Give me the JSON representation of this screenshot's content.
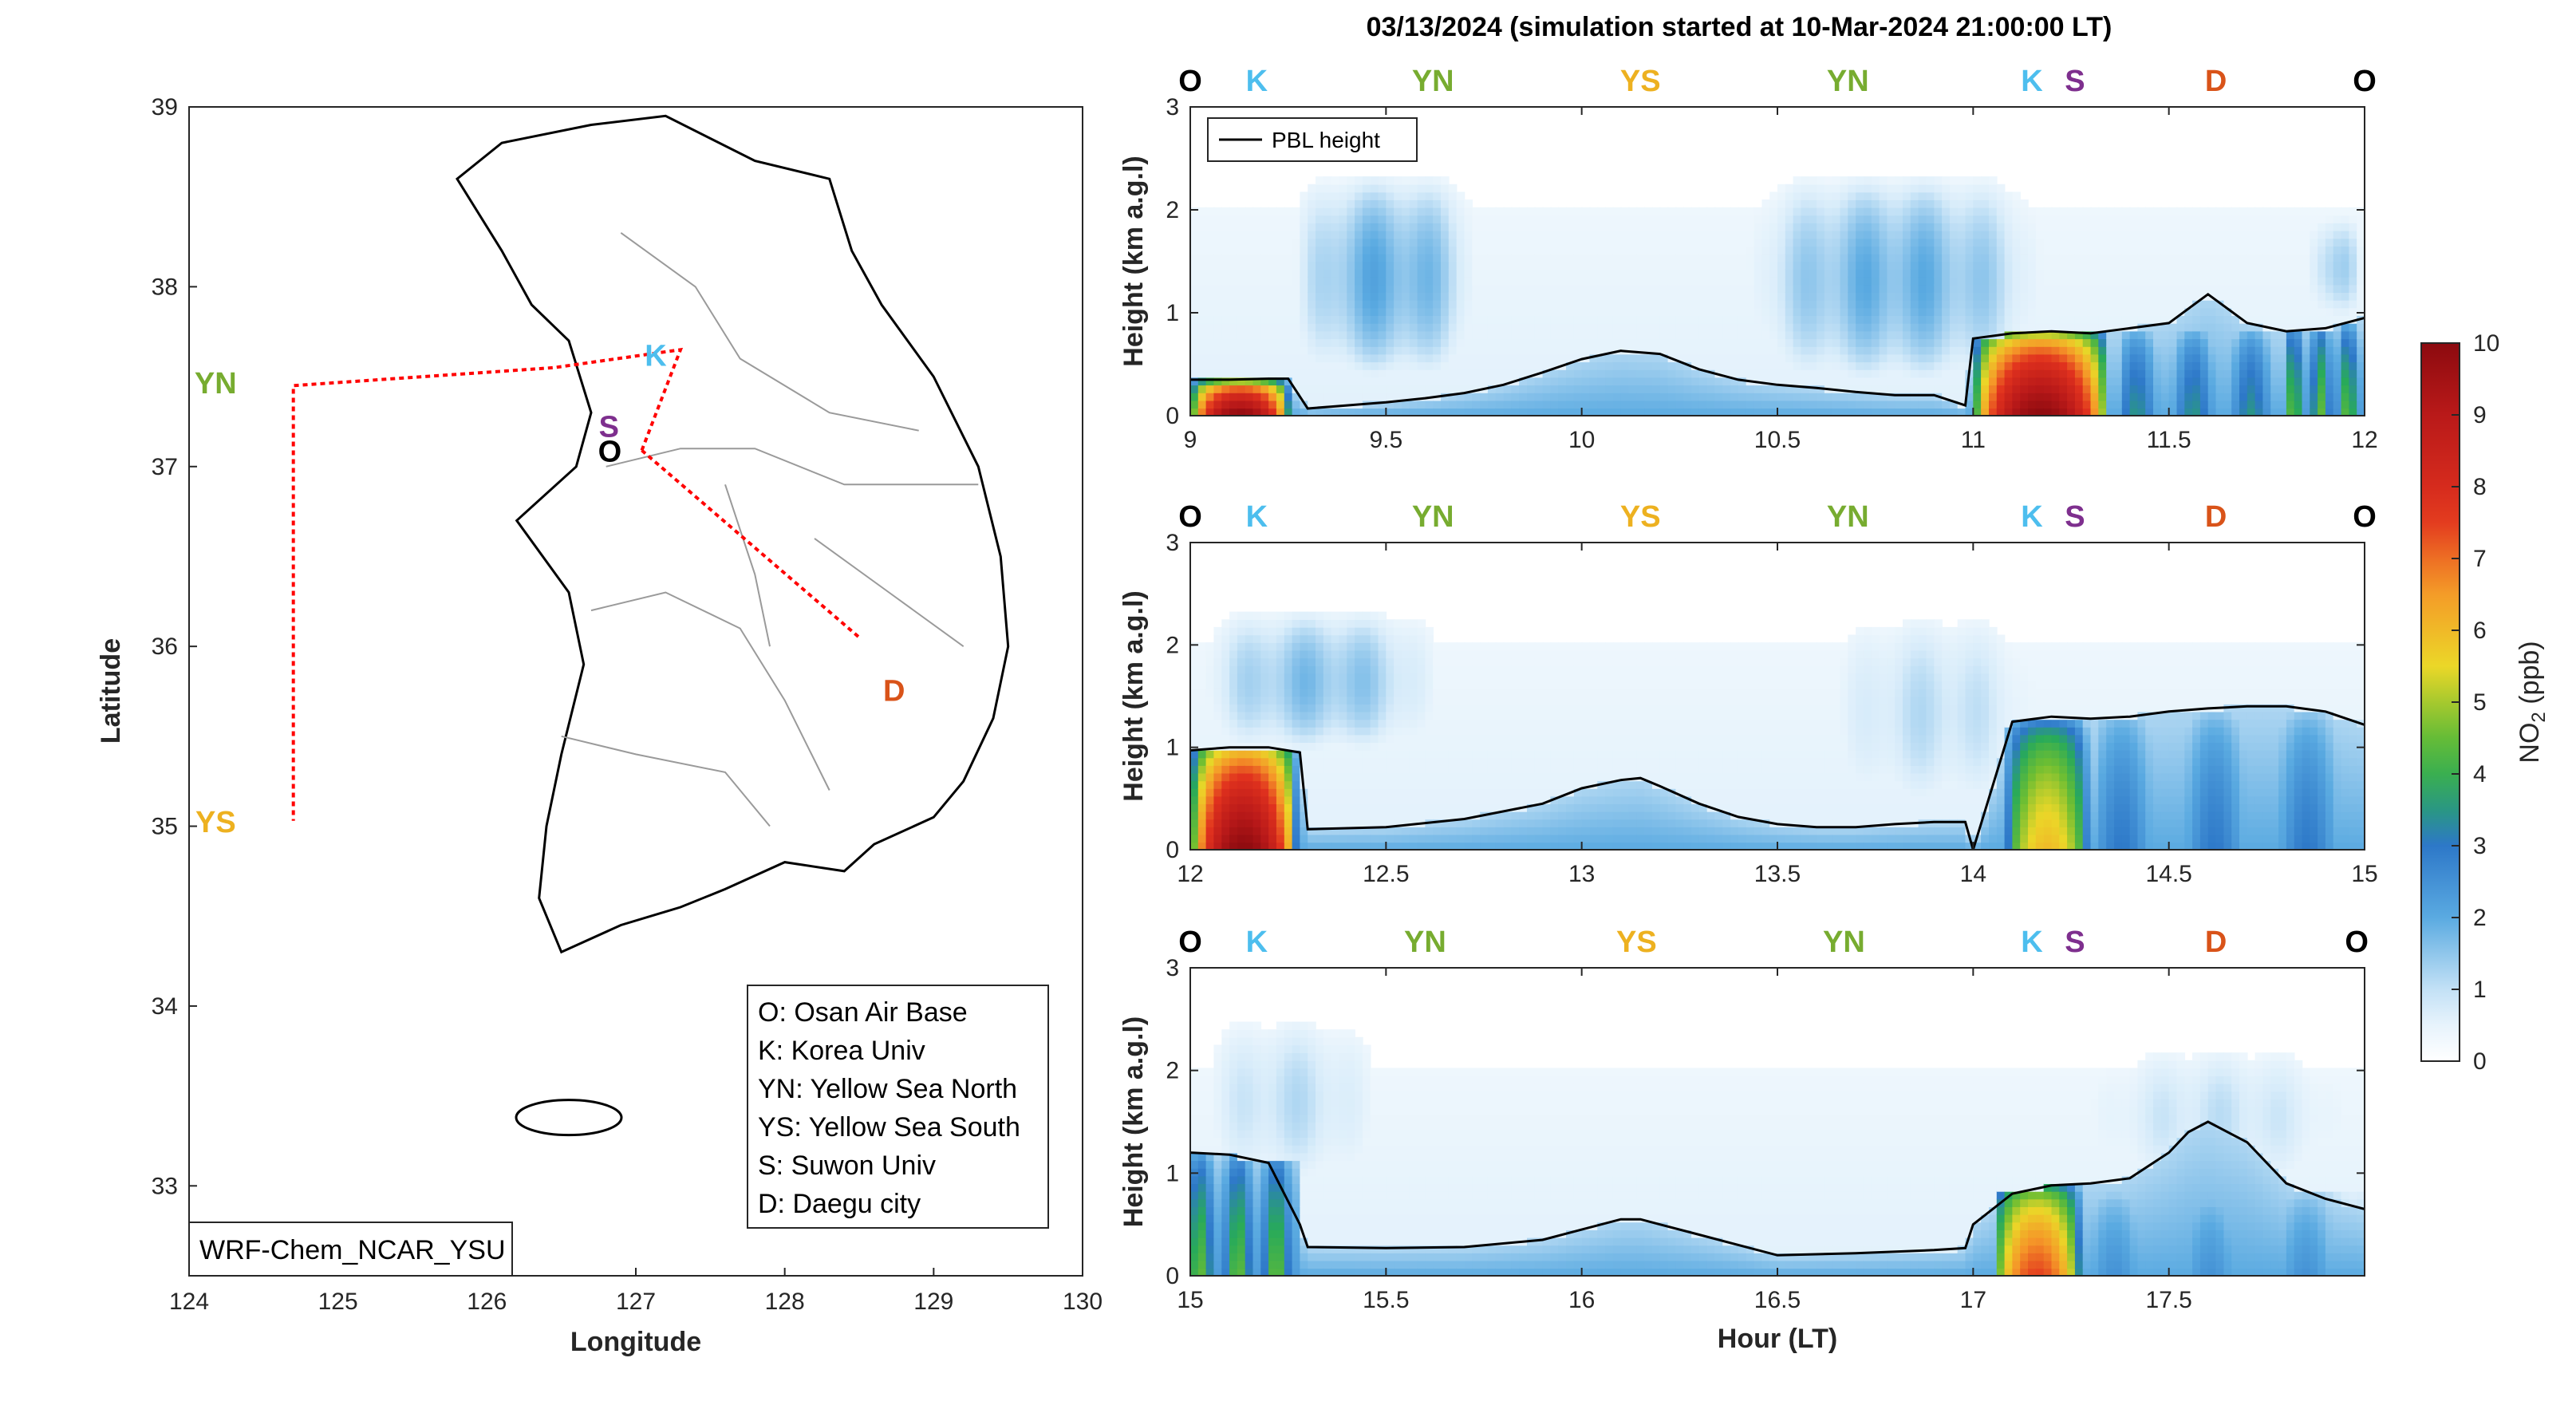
{
  "title": "03/13/2024 (simulation started at 10-Mar-2024 21:00:00 LT)",
  "map": {
    "xlabel": "Longitude",
    "ylabel": "Latitude",
    "xticks": [
      "124",
      "125",
      "126",
      "127",
      "128",
      "129",
      "130"
    ],
    "yticks": [
      "39",
      "38",
      "37",
      "36",
      "35",
      "34",
      "33"
    ],
    "model_label": "WRF-Chem_NCAR_YSU",
    "sites": [
      {
        "code": "K",
        "lon": 127.0,
        "lat": 37.6,
        "color": "#4DBEEE"
      },
      {
        "code": "S",
        "lon": 126.98,
        "lat": 37.28,
        "color": "#7E2F8E"
      },
      {
        "code": "O",
        "lon": 127.04,
        "lat": 37.09,
        "color": "#000000"
      },
      {
        "code": "YN",
        "lon": 124.5,
        "lat": 37.47,
        "color": "#77AC30"
      },
      {
        "code": "YS",
        "lon": 124.5,
        "lat": 35.03,
        "color": "#EDB120"
      },
      {
        "code": "D",
        "lon": 128.6,
        "lat": 35.87,
        "color": "#D95319"
      }
    ],
    "legend": [
      "O: Osan Air Base",
      "K: Korea Univ",
      "YN: Yellow Sea North",
      "YS: Yellow Sea South",
      "S: Suwon Univ",
      "D: Daegu city"
    ],
    "route_color": "#FF0000"
  },
  "chart_data": [
    {
      "type": "heatmap",
      "ylabel": "Height (km a.g.l)",
      "xlim": [
        9,
        12
      ],
      "ylim": [
        0,
        3
      ],
      "xticks": [
        "9",
        "9.5",
        "10",
        "10.5",
        "11",
        "11.5",
        "12"
      ],
      "yticks": [
        "0",
        "1",
        "2",
        "3"
      ],
      "top_sites": [
        {
          "code": "O",
          "x": 9.0,
          "color": "#000000"
        },
        {
          "code": "K",
          "x": 9.17,
          "color": "#4DBEEE"
        },
        {
          "code": "YN",
          "x": 9.62,
          "color": "#77AC30"
        },
        {
          "code": "YS",
          "x": 10.15,
          "color": "#EDB120"
        },
        {
          "code": "YN",
          "x": 10.68,
          "color": "#77AC30"
        },
        {
          "code": "K",
          "x": 11.15,
          "color": "#4DBEEE"
        },
        {
          "code": "S",
          "x": 11.26,
          "color": "#7E2F8E"
        },
        {
          "code": "D",
          "x": 11.62,
          "color": "#D95319"
        },
        {
          "code": "O",
          "x": 12.0,
          "color": "#000000"
        }
      ],
      "legend": "PBL height",
      "pbl": {
        "x": [
          9.0,
          9.1,
          9.2,
          9.25,
          9.3,
          9.4,
          9.5,
          9.6,
          9.7,
          9.8,
          9.9,
          10.0,
          10.1,
          10.2,
          10.3,
          10.4,
          10.5,
          10.6,
          10.7,
          10.8,
          10.9,
          10.98,
          11.0,
          11.1,
          11.2,
          11.3,
          11.4,
          11.5,
          11.6,
          11.7,
          11.8,
          11.9,
          12.0
        ],
        "y": [
          0.35,
          0.35,
          0.36,
          0.36,
          0.07,
          0.1,
          0.13,
          0.17,
          0.22,
          0.3,
          0.42,
          0.55,
          0.63,
          0.6,
          0.45,
          0.35,
          0.3,
          0.27,
          0.23,
          0.2,
          0.2,
          0.1,
          0.75,
          0.8,
          0.82,
          0.8,
          0.85,
          0.9,
          1.18,
          0.9,
          0.82,
          0.85,
          0.95
        ]
      },
      "hotspots": [
        {
          "x": [
            9.0,
            9.28
          ],
          "ztop": 0.33,
          "peak": 10,
          "profile": "sharp"
        },
        {
          "x": [
            11.0,
            11.38
          ],
          "ztop": 0.78,
          "peak": 10,
          "profile": "sharp"
        },
        {
          "x": [
            11.38,
            11.8
          ],
          "ztop": 0.8,
          "peak": 3.5,
          "profile": "flat"
        },
        {
          "x": [
            11.8,
            12.0
          ],
          "ztop": 0.85,
          "peak": 4.5,
          "profile": "flat"
        }
      ],
      "aloft": [
        {
          "x": [
            9.25,
            9.75
          ],
          "z": [
            0.3,
            2.4
          ],
          "peak": 2.2
        },
        {
          "x": [
            10.4,
            11.2
          ],
          "z": [
            0.25,
            2.4
          ],
          "peak": 2.1
        },
        {
          "x": [
            11.85,
            12.0
          ],
          "z": [
            0.9,
            2.0
          ],
          "peak": 1.6
        }
      ]
    },
    {
      "type": "heatmap",
      "ylabel": "Height (km a.g.l)",
      "xlim": [
        12,
        15
      ],
      "ylim": [
        0,
        3
      ],
      "xticks": [
        "12",
        "12.5",
        "13",
        "13.5",
        "14",
        "14.5",
        "15"
      ],
      "yticks": [
        "0",
        "1",
        "2",
        "3"
      ],
      "top_sites": [
        {
          "code": "O",
          "x": 12.0,
          "color": "#000000"
        },
        {
          "code": "K",
          "x": 12.17,
          "color": "#4DBEEE"
        },
        {
          "code": "YN",
          "x": 12.62,
          "color": "#77AC30"
        },
        {
          "code": "YS",
          "x": 13.15,
          "color": "#EDB120"
        },
        {
          "code": "YN",
          "x": 13.68,
          "color": "#77AC30"
        },
        {
          "code": "K",
          "x": 14.15,
          "color": "#4DBEEE"
        },
        {
          "code": "S",
          "x": 14.26,
          "color": "#7E2F8E"
        },
        {
          "code": "D",
          "x": 14.62,
          "color": "#D95319"
        },
        {
          "code": "O",
          "x": 15.0,
          "color": "#000000"
        }
      ],
      "pbl": {
        "x": [
          12.0,
          12.1,
          12.2,
          12.28,
          12.3,
          12.5,
          12.7,
          12.9,
          13.0,
          13.1,
          13.15,
          13.2,
          13.3,
          13.4,
          13.5,
          13.6,
          13.7,
          13.8,
          13.9,
          13.98,
          14.0,
          14.1,
          14.2,
          14.3,
          14.4,
          14.5,
          14.6,
          14.7,
          14.8,
          14.9,
          15.0
        ],
        "y": [
          0.97,
          1.0,
          1.0,
          0.95,
          0.2,
          0.22,
          0.3,
          0.45,
          0.6,
          0.68,
          0.7,
          0.62,
          0.45,
          0.32,
          0.25,
          0.22,
          0.22,
          0.25,
          0.27,
          0.27,
          0.0,
          1.25,
          1.3,
          1.28,
          1.3,
          1.35,
          1.38,
          1.4,
          1.4,
          1.35,
          1.22
        ]
      },
      "hotspots": [
        {
          "x": [
            12.0,
            12.3
          ],
          "ztop": 1.0,
          "peak": 10,
          "profile": "sharp"
        },
        {
          "x": [
            14.08,
            14.32
          ],
          "ztop": 1.2,
          "peak": 6,
          "profile": "sharp"
        },
        {
          "x": [
            14.32,
            15.0
          ],
          "ztop": 1.3,
          "peak": 3.0,
          "profile": "flat"
        }
      ],
      "aloft": [
        {
          "x": [
            12.0,
            12.65
          ],
          "z": [
            0.9,
            2.4
          ],
          "peak": 1.8
        },
        {
          "x": [
            13.6,
            14.2
          ],
          "z": [
            0.3,
            2.4
          ],
          "peak": 1.2
        }
      ]
    },
    {
      "type": "heatmap",
      "ylabel": "Height (km a.g.l)",
      "xlabel": "Hour (LT)",
      "xlim": [
        15,
        18
      ],
      "ylim": [
        0,
        3
      ],
      "xticks": [
        "15",
        "15.5",
        "16",
        "16.5",
        "17",
        "17.5"
      ],
      "yticks": [
        "0",
        "1",
        "2",
        "3"
      ],
      "top_sites": [
        {
          "code": "O",
          "x": 15.0,
          "color": "#000000"
        },
        {
          "code": "K",
          "x": 15.17,
          "color": "#4DBEEE"
        },
        {
          "code": "YN",
          "x": 15.6,
          "color": "#77AC30"
        },
        {
          "code": "YS",
          "x": 16.14,
          "color": "#EDB120"
        },
        {
          "code": "YN",
          "x": 16.67,
          "color": "#77AC30"
        },
        {
          "code": "K",
          "x": 17.15,
          "color": "#4DBEEE"
        },
        {
          "code": "S",
          "x": 17.26,
          "color": "#7E2F8E"
        },
        {
          "code": "D",
          "x": 17.62,
          "color": "#D95319"
        },
        {
          "code": "O",
          "x": 17.98,
          "color": "#000000"
        }
      ],
      "pbl": {
        "x": [
          15.0,
          15.1,
          15.2,
          15.28,
          15.3,
          15.5,
          15.7,
          15.9,
          16.0,
          16.1,
          16.15,
          16.2,
          16.3,
          16.5,
          16.7,
          16.9,
          16.98,
          17.0,
          17.1,
          17.2,
          17.3,
          17.4,
          17.5,
          17.55,
          17.6,
          17.7,
          17.8,
          17.9,
          18.0
        ],
        "y": [
          1.2,
          1.18,
          1.1,
          0.5,
          0.28,
          0.27,
          0.28,
          0.35,
          0.45,
          0.55,
          0.55,
          0.5,
          0.4,
          0.2,
          0.22,
          0.25,
          0.27,
          0.5,
          0.8,
          0.88,
          0.9,
          0.95,
          1.2,
          1.4,
          1.5,
          1.3,
          0.9,
          0.75,
          0.65
        ]
      },
      "hotspots": [
        {
          "x": [
            15.0,
            15.28
          ],
          "ztop": 1.15,
          "peak": 4.5,
          "profile": "flat"
        },
        {
          "x": [
            17.05,
            17.3
          ],
          "ztop": 0.85,
          "peak": 7.5,
          "profile": "sharp"
        },
        {
          "x": [
            17.3,
            18.0
          ],
          "ztop": 0.8,
          "peak": 2.5,
          "profile": "flat"
        }
      ],
      "aloft": [
        {
          "x": [
            15.0,
            15.5
          ],
          "z": [
            0.8,
            2.6
          ],
          "peak": 1.2
        },
        {
          "x": [
            17.25,
            18.0
          ],
          "z": [
            0.8,
            2.3
          ],
          "peak": 1.1
        }
      ]
    }
  ],
  "colorbar": {
    "label": "NO2 (ppb)",
    "min": 0,
    "max": 10,
    "ticks": [
      "0",
      "1",
      "2",
      "3",
      "4",
      "5",
      "6",
      "7",
      "8",
      "9",
      "10"
    ]
  }
}
